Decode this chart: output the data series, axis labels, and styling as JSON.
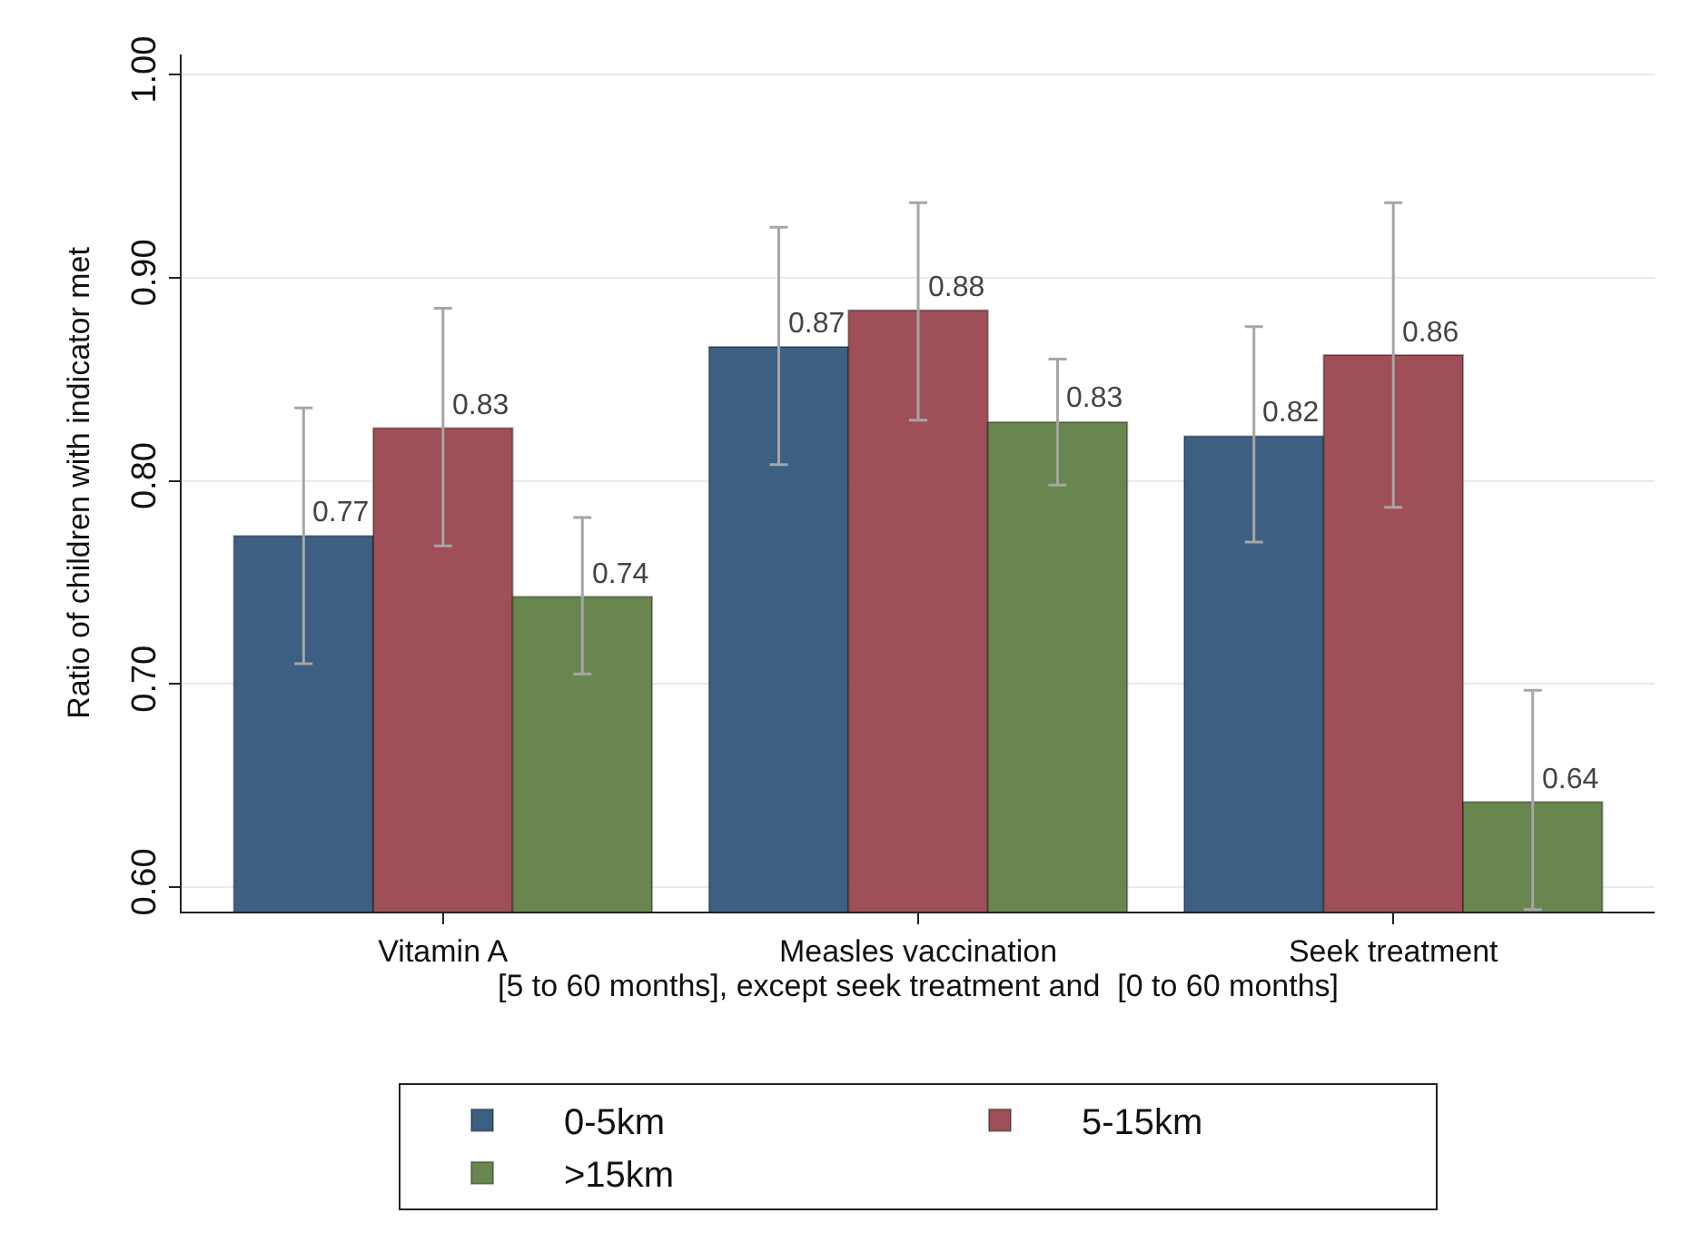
{
  "chart_data": {
    "type": "bar",
    "ylabel": "Ratio of children with indicator met",
    "xlabel": "[5 to 60 months], except seek treatment and  [0 to 60 months]",
    "categories": [
      "Vitamin A",
      "Measles vaccination",
      "Seek treatment"
    ],
    "series": [
      {
        "name": "0-5km",
        "color": "#3d5f81",
        "values": [
          0.773,
          0.866,
          0.822
        ],
        "errors": [
          [
            0.71,
            0.836
          ],
          [
            0.808,
            0.925
          ],
          [
            0.77,
            0.876
          ]
        ],
        "value_labels": [
          "0.77",
          "0.87",
          "0.82"
        ]
      },
      {
        "name": "5-15km",
        "color": "#9e4f57",
        "values": [
          0.826,
          0.884,
          0.862
        ],
        "errors": [
          [
            0.768,
            0.885
          ],
          [
            0.83,
            0.937
          ],
          [
            0.787,
            0.937
          ]
        ],
        "value_labels": [
          "0.83",
          "0.88",
          "0.86"
        ]
      },
      {
        "name": ">15km",
        "color": "#69864f",
        "values": [
          0.743,
          0.829,
          0.642
        ],
        "errors": [
          [
            0.705,
            0.782
          ],
          [
            0.798,
            0.86
          ],
          [
            0.589,
            0.697
          ]
        ],
        "value_labels": [
          "0.74",
          "0.83",
          "0.64"
        ]
      }
    ],
    "ylim": [
      0.588,
      1.01
    ],
    "yticks": [
      {
        "value": 0.6,
        "label": "0.60"
      },
      {
        "value": 0.7,
        "label": "0.70"
      },
      {
        "value": 0.8,
        "label": "0.80"
      },
      {
        "value": 0.9,
        "label": "0.90"
      },
      {
        "value": 1.0,
        "label": "1.00"
      }
    ],
    "grid": "y",
    "legend": "bottom"
  }
}
